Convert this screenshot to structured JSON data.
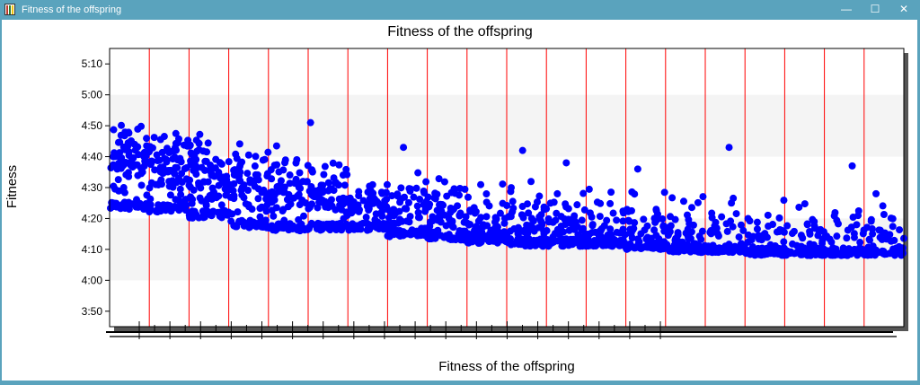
{
  "window": {
    "title": "Fitness of the offspring",
    "controls": [
      "—",
      "☐",
      "✕"
    ]
  },
  "colors": {
    "titlebar": "#5aa3bd",
    "points": "#0000ff",
    "vlines": "#ff0000",
    "band": "#f4f4f4"
  },
  "chart_data": {
    "type": "scatter",
    "title": "Fitness of the offspring",
    "xlabel": "Fitness of the offspring",
    "ylabel": "Fitness",
    "yunit": "minutes:seconds",
    "ylim": [
      225,
      315
    ],
    "yticks": [
      {
        "label": "3:50",
        "value": 230
      },
      {
        "label": "4:00",
        "value": 240
      },
      {
        "label": "4:10",
        "value": 250
      },
      {
        "label": "4:20",
        "value": 260
      },
      {
        "label": "4:30",
        "value": 270
      },
      {
        "label": "4:40",
        "value": 280
      },
      {
        "label": "4:50",
        "value": 290
      },
      {
        "label": "5:00",
        "value": 300
      },
      {
        "label": "5:10",
        "value": 310
      }
    ],
    "shaded_bands": [
      [
        240,
        260
      ],
      [
        280,
        300
      ]
    ],
    "xlim": [
      0,
      100
    ],
    "vlines_x": [
      5,
      10,
      15,
      20,
      25,
      30,
      35,
      40,
      45,
      50,
      55,
      60,
      65,
      70,
      75,
      80,
      85,
      90,
      95
    ],
    "grid": false,
    "series": [
      {
        "segments": [
          {
            "x0": 0,
            "x1": 5,
            "center": 279,
            "spread": 8,
            "floor": 263,
            "count": 110
          },
          {
            "x0": 5,
            "x1": 10,
            "center": 277,
            "spread": 8,
            "floor": 262,
            "count": 110
          },
          {
            "x0": 10,
            "x1": 15,
            "center": 274,
            "spread": 8,
            "floor": 260,
            "count": 105
          },
          {
            "x0": 15,
            "x1": 20,
            "center": 271,
            "spread": 8,
            "floor": 257,
            "count": 105
          },
          {
            "x0": 20,
            "x1": 25,
            "center": 269,
            "spread": 8,
            "floor": 256,
            "count": 100
          },
          {
            "x0": 25,
            "x1": 30,
            "center": 267,
            "spread": 7,
            "floor": 256,
            "count": 100
          },
          {
            "x0": 30,
            "x1": 35,
            "center": 264,
            "spread": 7,
            "floor": 256,
            "count": 95
          },
          {
            "x0": 35,
            "x1": 40,
            "center": 262,
            "spread": 7,
            "floor": 254,
            "count": 95
          },
          {
            "x0": 40,
            "x1": 45,
            "center": 261,
            "spread": 7,
            "floor": 253,
            "count": 95
          },
          {
            "x0": 45,
            "x1": 50,
            "center": 259,
            "spread": 8,
            "floor": 252,
            "count": 95
          },
          {
            "x0": 50,
            "x1": 55,
            "center": 258,
            "spread": 8,
            "floor": 251,
            "count": 95
          },
          {
            "x0": 55,
            "x1": 60,
            "center": 257,
            "spread": 8,
            "floor": 251,
            "count": 95
          },
          {
            "x0": 60,
            "x1": 65,
            "center": 256,
            "spread": 8,
            "floor": 251,
            "count": 95
          },
          {
            "x0": 65,
            "x1": 70,
            "center": 255,
            "spread": 8,
            "floor": 250,
            "count": 90
          },
          {
            "x0": 70,
            "x1": 75,
            "center": 254,
            "spread": 9,
            "floor": 249,
            "count": 90
          },
          {
            "x0": 75,
            "x1": 80,
            "center": 253,
            "spread": 9,
            "floor": 249,
            "count": 90
          },
          {
            "x0": 80,
            "x1": 85,
            "center": 252,
            "spread": 9,
            "floor": 248,
            "count": 90
          },
          {
            "x0": 85,
            "x1": 90,
            "center": 251,
            "spread": 9,
            "floor": 248,
            "count": 85
          },
          {
            "x0": 90,
            "x1": 95,
            "center": 250,
            "spread": 9,
            "floor": 248,
            "count": 85
          },
          {
            "x0": 95,
            "x1": 100,
            "center": 250,
            "spread": 9,
            "floor": 248,
            "count": 85
          }
        ],
        "outliers": [
          {
            "x": 25.3,
            "y": 291
          },
          {
            "x": 37.0,
            "y": 283
          },
          {
            "x": 52.0,
            "y": 282
          },
          {
            "x": 57.5,
            "y": 278
          },
          {
            "x": 66.5,
            "y": 276
          },
          {
            "x": 78.0,
            "y": 283
          },
          {
            "x": 93.5,
            "y": 277
          },
          {
            "x": 96.5,
            "y": 268
          }
        ]
      }
    ]
  }
}
